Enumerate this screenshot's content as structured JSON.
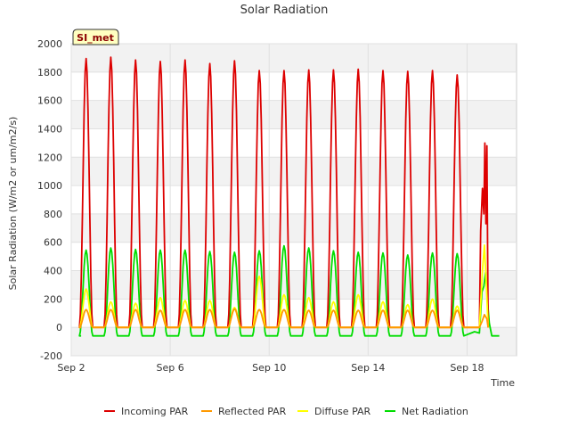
{
  "chart_data": {
    "type": "line",
    "title": "Solar Radiation",
    "xlabel": "Time",
    "ylabel": "Solar Radiation (W/m2 or um/m2/s)",
    "badge": "SI_met",
    "ylim": [
      -200,
      2000
    ],
    "yticks": [
      -200,
      0,
      200,
      400,
      600,
      800,
      1000,
      1200,
      1400,
      1600,
      1800,
      2000
    ],
    "xlim": [
      2.0,
      20.0
    ],
    "xticks": [
      {
        "value": 2,
        "label": "Sep 2"
      },
      {
        "value": 6,
        "label": "Sep 6"
      },
      {
        "value": 10,
        "label": "Sep 10"
      },
      {
        "value": 14,
        "label": "Sep 14"
      },
      {
        "value": 18,
        "label": "Sep 18"
      }
    ],
    "days": [
      2.6,
      3.6,
      4.6,
      5.6,
      6.6,
      7.6,
      8.6,
      9.6,
      10.6,
      11.6,
      12.6,
      13.6,
      14.6,
      15.6,
      16.6,
      17.6
    ],
    "series": [
      {
        "name": "Incoming PAR",
        "color": "#dd0000",
        "peaks": [
          1895,
          1905,
          1885,
          1875,
          1885,
          1860,
          1880,
          1810,
          1810,
          1815,
          1815,
          1820,
          1810,
          1805,
          1810,
          1780
        ],
        "baseline": 0,
        "last_day": {
          "x": [
            18.5,
            18.55,
            18.62,
            18.68,
            18.72,
            18.76,
            18.8,
            18.85
          ],
          "y": [
            0,
            680,
            980,
            800,
            1300,
            730,
            1280,
            0
          ]
        }
      },
      {
        "name": "Reflected PAR",
        "color": "#ff9900",
        "peaks": [
          125,
          125,
          125,
          120,
          125,
          125,
          130,
          125,
          125,
          120,
          120,
          120,
          120,
          120,
          120,
          120
        ],
        "baseline": 0,
        "last_day": {
          "x": [
            18.5,
            18.6,
            18.7,
            18.8,
            18.85
          ],
          "y": [
            0,
            40,
            90,
            60,
            0
          ]
        }
      },
      {
        "name": "Diffuse PAR",
        "color": "#ffff00",
        "peaks": [
          270,
          180,
          170,
          210,
          190,
          190,
          140,
          360,
          230,
          210,
          180,
          230,
          180,
          160,
          200,
          150
        ],
        "baseline": 0,
        "last_day": {
          "x": [
            18.5,
            18.62,
            18.7,
            18.78,
            18.85
          ],
          "y": [
            0,
            400,
            580,
            300,
            0
          ]
        }
      },
      {
        "name": "Net Radiation",
        "color": "#00dd00",
        "peaks": [
          545,
          560,
          550,
          545,
          545,
          535,
          530,
          540,
          575,
          560,
          540,
          530,
          525,
          510,
          525,
          520
        ],
        "baseline": -60,
        "last_day": {
          "x": [
            18.3,
            18.5,
            18.6,
            18.68,
            18.75,
            18.82,
            18.9,
            19.0,
            19.3
          ],
          "y": [
            -30,
            -40,
            250,
            290,
            390,
            200,
            30,
            -60,
            -60
          ]
        }
      }
    ]
  }
}
